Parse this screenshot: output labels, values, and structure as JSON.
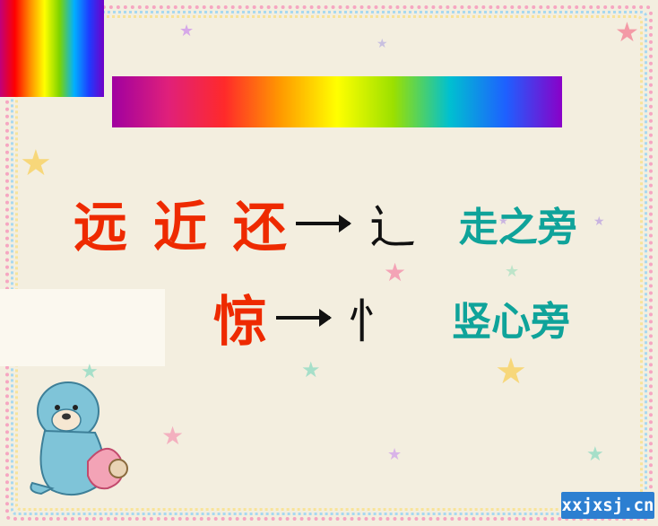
{
  "rows": [
    {
      "chars": "远 近 还",
      "radical": "辶",
      "name": "走之旁"
    },
    {
      "chars": "惊",
      "radical": "忄",
      "name": "竖心旁"
    }
  ],
  "watermark": "xxjxsj.cn",
  "colors": {
    "characters": "#ee2a00",
    "radical_name": "#0fa39a",
    "arrow": "#111111",
    "background": "#f3eedf"
  }
}
